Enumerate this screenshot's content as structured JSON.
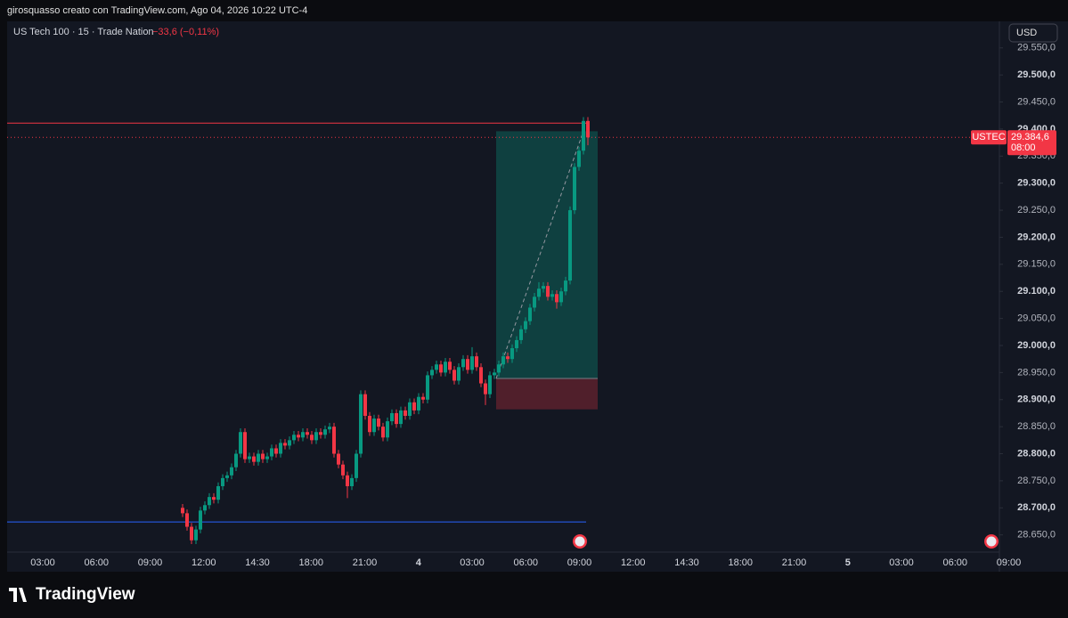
{
  "header": "girosquasso creato con TradingView.com, Ago 04, 2026 10:22 UTC-4",
  "footer": "TradingView",
  "chart_data": {
    "type": "candlestick",
    "title": "US Tech 100 · 15 · Trade Nation",
    "change_label": "−33,6 (−0,11%)",
    "currency": "USD",
    "symbol": "USTEC",
    "last_price": 29384.6,
    "last_price_label": "29.384,6",
    "countdown": "08:00",
    "up_color": "#089981",
    "down_color": "#f23645",
    "ylim": [
      28582,
      29599
    ],
    "yticks": [
      {
        "value": 28650,
        "label": "28.650,0"
      },
      {
        "value": 28700,
        "label": "28.700,0"
      },
      {
        "value": 28750,
        "label": "28.750,0"
      },
      {
        "value": 28800,
        "label": "28.800,0"
      },
      {
        "value": 28850,
        "label": "28.850,0"
      },
      {
        "value": 28900,
        "label": "28.900,0"
      },
      {
        "value": 28950,
        "label": "28.950,0"
      },
      {
        "value": 29000,
        "label": "29.000,0"
      },
      {
        "value": 29050,
        "label": "29.050,0"
      },
      {
        "value": 29100,
        "label": "29.100,0"
      },
      {
        "value": 29150,
        "label": "29.150,0"
      },
      {
        "value": 29200,
        "label": "29.200,0"
      },
      {
        "value": 29250,
        "label": "29.250,0"
      },
      {
        "value": 29300,
        "label": "29.300,0"
      },
      {
        "value": 29350,
        "label": "29.350,0"
      },
      {
        "value": 29400,
        "label": "29.400,0"
      },
      {
        "value": 29450,
        "label": "29.450,0"
      },
      {
        "value": 29500,
        "label": "29.500,0"
      },
      {
        "value": 29550,
        "label": "29.550,0"
      }
    ],
    "xticks": [
      "03:00",
      "06:00",
      "09:00",
      "12:00",
      "14:30",
      "18:00",
      "21:00",
      "4",
      "03:00",
      "06:00",
      "09:00",
      "12:00",
      "14:30",
      "18:00",
      "21:00",
      "5",
      "03:00",
      "06:00",
      "09:00"
    ],
    "levels": [
      {
        "value": 29411,
        "color": "#f23645"
      },
      {
        "value": 28674,
        "color": "#2962ff"
      }
    ],
    "position": {
      "entry": 28939,
      "target": 29396,
      "stop": 28882
    },
    "ohlc": [
      [
        28700,
        28707,
        28683,
        28690
      ],
      [
        28690,
        28697,
        28658,
        28665
      ],
      [
        28665,
        28672,
        28633,
        28640
      ],
      [
        28640,
        28667,
        28633,
        28660
      ],
      [
        28660,
        28702,
        28653,
        28695
      ],
      [
        28695,
        28712,
        28688,
        28705
      ],
      [
        28705,
        28727,
        28698,
        28720
      ],
      [
        28720,
        28727,
        28708,
        28715
      ],
      [
        28715,
        28747,
        28708,
        28740
      ],
      [
        28740,
        28762,
        28733,
        28755
      ],
      [
        28755,
        28767,
        28748,
        28760
      ],
      [
        28760,
        28782,
        28753,
        28775
      ],
      [
        28775,
        28807,
        28768,
        28800
      ],
      [
        28800,
        28847,
        28793,
        28840
      ],
      [
        28840,
        28847,
        28783,
        28790
      ],
      [
        28790,
        28802,
        28783,
        28795
      ],
      [
        28795,
        28802,
        28778,
        28785
      ],
      [
        28785,
        28807,
        28778,
        28800
      ],
      [
        28800,
        28807,
        28783,
        28790
      ],
      [
        28790,
        28802,
        28783,
        28795
      ],
      [
        28795,
        28817,
        28788,
        28810
      ],
      [
        28810,
        28817,
        28793,
        28800
      ],
      [
        28800,
        28827,
        28793,
        28820
      ],
      [
        28820,
        28827,
        28808,
        28815
      ],
      [
        28815,
        28832,
        28808,
        28825
      ],
      [
        28825,
        28842,
        28818,
        28835
      ],
      [
        28835,
        28842,
        28823,
        28830
      ],
      [
        28830,
        28847,
        28823,
        28840
      ],
      [
        28840,
        28847,
        28828,
        28835
      ],
      [
        28835,
        28842,
        28818,
        28825
      ],
      [
        28825,
        28847,
        28818,
        28840
      ],
      [
        28840,
        28847,
        28828,
        28835
      ],
      [
        28835,
        28852,
        28828,
        28845
      ],
      [
        28845,
        28857,
        28838,
        28850
      ],
      [
        28850,
        28857,
        28793,
        28800
      ],
      [
        28800,
        28807,
        28773,
        28780
      ],
      [
        28780,
        28787,
        28753,
        28760
      ],
      [
        28760,
        28767,
        28718,
        28740
      ],
      [
        28740,
        28762,
        28733,
        28755
      ],
      [
        28755,
        28807,
        28748,
        28800
      ],
      [
        28800,
        28917,
        28793,
        28910
      ],
      [
        28910,
        28917,
        28863,
        28870
      ],
      [
        28870,
        28877,
        28833,
        28840
      ],
      [
        28840,
        28872,
        28833,
        28865
      ],
      [
        28865,
        28872,
        28843,
        28850
      ],
      [
        28850,
        28857,
        28823,
        28830
      ],
      [
        28830,
        28867,
        28823,
        28860
      ],
      [
        28860,
        28882,
        28853,
        28875
      ],
      [
        28875,
        28882,
        28848,
        28855
      ],
      [
        28855,
        28887,
        28848,
        28880
      ],
      [
        28880,
        28887,
        28863,
        28870
      ],
      [
        28870,
        28902,
        28863,
        28895
      ],
      [
        28895,
        28902,
        28873,
        28880
      ],
      [
        28880,
        28912,
        28873,
        28905
      ],
      [
        28905,
        28912,
        28893,
        28900
      ],
      [
        28900,
        28952,
        28893,
        28945
      ],
      [
        28945,
        28962,
        28938,
        28955
      ],
      [
        28955,
        28972,
        28948,
        28965
      ],
      [
        28965,
        28972,
        28943,
        28950
      ],
      [
        28950,
        28977,
        28943,
        28970
      ],
      [
        28970,
        28977,
        28948,
        28955
      ],
      [
        28955,
        28962,
        28928,
        28935
      ],
      [
        28935,
        28967,
        28928,
        28960
      ],
      [
        28960,
        28982,
        28953,
        28975
      ],
      [
        28975,
        28982,
        28948,
        28955
      ],
      [
        28955,
        28997,
        28948,
        28980
      ],
      [
        28980,
        28987,
        28953,
        28960
      ],
      [
        28960,
        28967,
        28923,
        28930
      ],
      [
        28930,
        28937,
        28890,
        28910
      ],
      [
        28910,
        28952,
        28903,
        28945
      ],
      [
        28945,
        28957,
        28938,
        28950
      ],
      [
        28950,
        28972,
        28943,
        28965
      ],
      [
        28965,
        28987,
        28958,
        28980
      ],
      [
        28980,
        28987,
        28968,
        28975
      ],
      [
        28975,
        29002,
        28968,
        28995
      ],
      [
        28995,
        29017,
        28988,
        29010
      ],
      [
        29010,
        29037,
        29003,
        29030
      ],
      [
        29030,
        29052,
        29023,
        29045
      ],
      [
        29045,
        29077,
        29038,
        29070
      ],
      [
        29070,
        29097,
        29063,
        29090
      ],
      [
        29090,
        29117,
        29083,
        29105
      ],
      [
        29105,
        29117,
        29098,
        29110
      ],
      [
        29110,
        29117,
        29083,
        29090
      ],
      [
        29090,
        29102,
        29083,
        29095
      ],
      [
        29095,
        29102,
        29068,
        29080
      ],
      [
        29080,
        29107,
        29073,
        29100
      ],
      [
        29100,
        29127,
        29093,
        29120
      ],
      [
        29120,
        29257,
        29113,
        29250
      ],
      [
        29250,
        29337,
        29243,
        29330
      ],
      [
        29330,
        29367,
        29323,
        29360
      ],
      [
        29360,
        29422,
        29353,
        29415
      ],
      [
        29415,
        29422,
        29370,
        29384.6
      ]
    ]
  }
}
